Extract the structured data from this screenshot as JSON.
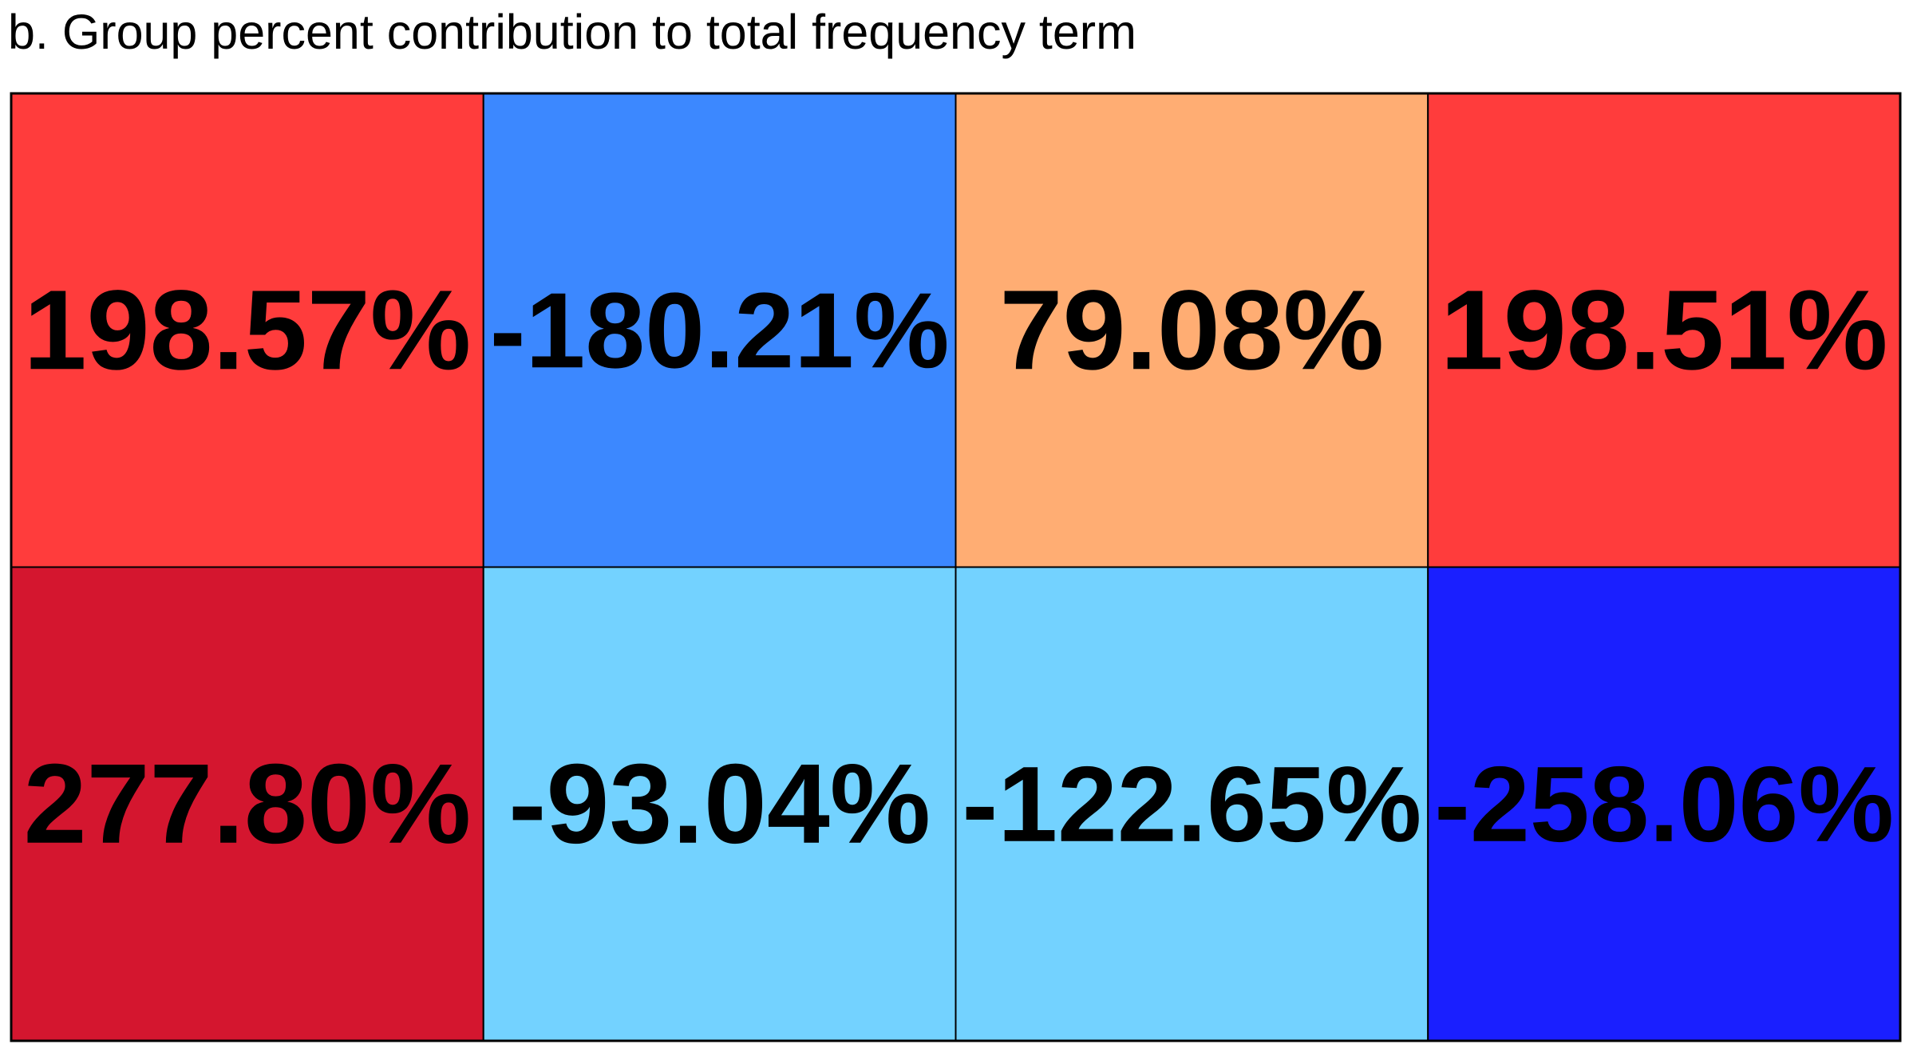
{
  "chart_data": {
    "type": "heatmap",
    "title": "b. Group percent contribution to total frequency term",
    "rows": 2,
    "cols": 4,
    "values": [
      [
        198.57,
        -180.21,
        79.08,
        198.51
      ],
      [
        277.8,
        -93.04,
        -122.65,
        -258.06
      ]
    ],
    "labels": [
      [
        "198.57%",
        "-180.21%",
        "79.08%",
        "198.51%"
      ],
      [
        "277.80%",
        "-93.04%",
        "-122.65%",
        "-258.06%"
      ]
    ],
    "colors": [
      [
        "#ff3c3c",
        "#3c88ff",
        "#ffad73",
        "#ff3c3c"
      ],
      [
        "#d4162f",
        "#73d2ff",
        "#73d2ff",
        "#1a1fff"
      ]
    ],
    "grid": true,
    "legend": "none"
  }
}
